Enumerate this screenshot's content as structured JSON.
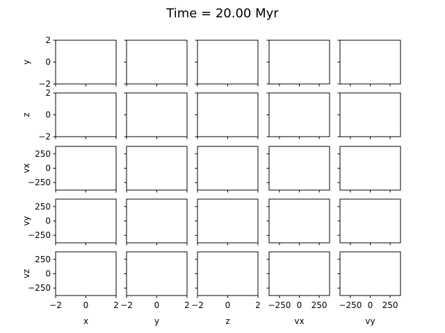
{
  "chart_data": {
    "type": "scatter",
    "title": "Time = 20.00 Myr",
    "columns": [
      "x",
      "y",
      "z",
      "vx",
      "vy"
    ],
    "rows": [
      "y",
      "z",
      "vx",
      "vy",
      "vz"
    ],
    "ranges": {
      "x": [
        -2,
        2
      ],
      "y": [
        -2,
        2
      ],
      "z": [
        -2,
        2
      ],
      "vx": [
        -380,
        380
      ],
      "vy": [
        -380,
        380
      ],
      "vz": [
        -380,
        380
      ]
    },
    "ticks": {
      "x": [
        -2,
        0,
        2
      ],
      "y": [
        -2,
        0,
        2
      ],
      "z": [
        -2,
        0,
        2
      ],
      "vx": [
        -250,
        0,
        250
      ],
      "vy": [
        -250,
        0,
        250
      ],
      "vz": [
        -250,
        0,
        250
      ]
    },
    "series": [],
    "grid": false,
    "sharex": "col",
    "sharey": "row"
  }
}
